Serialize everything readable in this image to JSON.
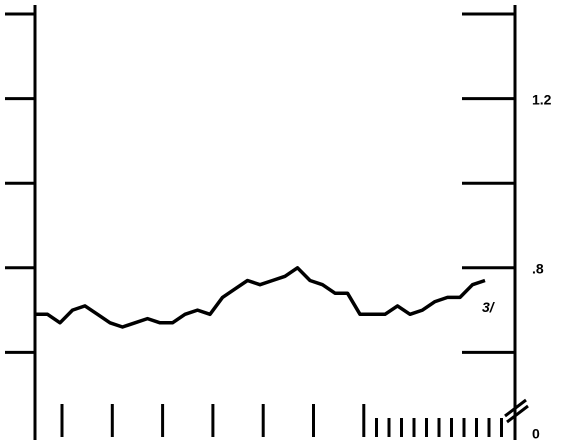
{
  "chart_data": {
    "type": "line",
    "categories": [
      null,
      null,
      null,
      null,
      null,
      null,
      null,
      null,
      null,
      null,
      null,
      null,
      null,
      null,
      null,
      null,
      null,
      null,
      null,
      null,
      null,
      null,
      null,
      null,
      null,
      null,
      null,
      null,
      null,
      null,
      null,
      null,
      null,
      null,
      null,
      null,
      null
    ],
    "values": [
      0.69,
      0.69,
      0.67,
      0.7,
      0.71,
      0.69,
      0.67,
      0.66,
      0.67,
      0.68,
      0.67,
      0.67,
      0.69,
      0.7,
      0.69,
      0.73,
      0.75,
      0.77,
      0.76,
      0.77,
      0.78,
      0.8,
      0.77,
      0.76,
      0.74,
      0.74,
      0.69,
      0.69,
      0.69,
      0.71,
      0.69,
      0.7,
      0.72,
      0.73,
      0.73,
      0.76,
      0.77
    ],
    "color": "#000000",
    "ylim": [
      0,
      1.4
    ],
    "axis_break": [
      0,
      0.4
    ],
    "yticks": [
      0,
      {
        "value": 0.8,
        "label": ".8"
      },
      1.2
    ],
    "minor_yticks": [
      0.6,
      1.0,
      1.4
    ],
    "annotation": "3/"
  }
}
